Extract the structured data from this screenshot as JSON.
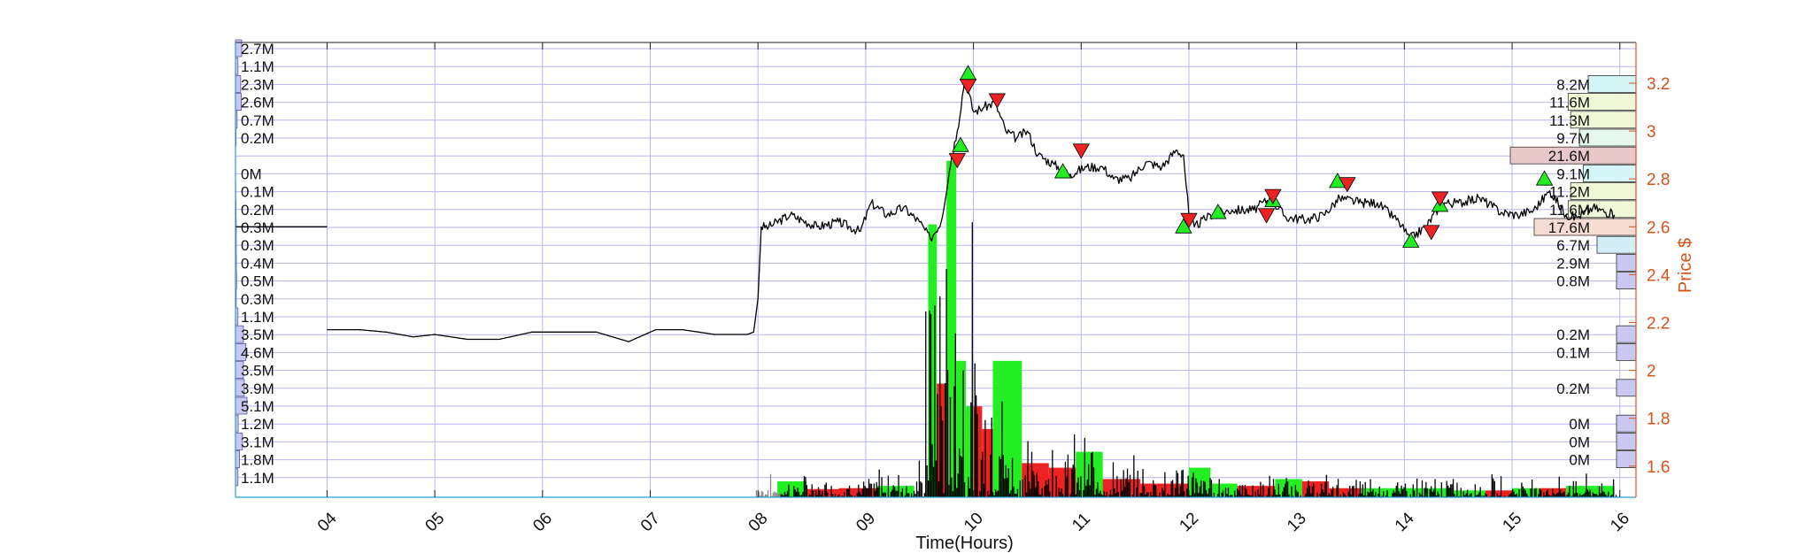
{
  "chart_data": {
    "type": "line",
    "xlabel": "Time(Hours)",
    "ylabel_right": "Price $",
    "xlim": [
      3.15,
      16.15
    ],
    "ylim": [
      1.47,
      3.37
    ],
    "x_ticks": [
      "04",
      "05",
      "06",
      "07",
      "08",
      "09",
      "10",
      "11",
      "12",
      "13",
      "14",
      "15",
      "16"
    ],
    "y_ticks_right": [
      1.6,
      1.8,
      2,
      2.2,
      2.4,
      2.6,
      2.8,
      3,
      3.2
    ],
    "grid": true,
    "colors": {
      "price": "#000000",
      "axis_right": "#d95319",
      "grid": "#b6b6f2",
      "up": "#22ee22",
      "down": "#ee2222",
      "left_profile": "#c8c8f0",
      "right_profile": "#c8c8f0"
    },
    "price_series": {
      "name": "Price",
      "points": [
        [
          4.0,
          2.17
        ],
        [
          4.3,
          2.17
        ],
        [
          4.55,
          2.16
        ],
        [
          4.8,
          2.14
        ],
        [
          5.0,
          2.15
        ],
        [
          5.3,
          2.13
        ],
        [
          5.6,
          2.13
        ],
        [
          5.9,
          2.16
        ],
        [
          6.2,
          2.16
        ],
        [
          6.5,
          2.16
        ],
        [
          6.8,
          2.12
        ],
        [
          7.05,
          2.17
        ],
        [
          7.3,
          2.17
        ],
        [
          7.6,
          2.15
        ],
        [
          7.9,
          2.15
        ],
        [
          7.96,
          2.16
        ],
        [
          8.0,
          2.3
        ],
        [
          8.03,
          2.6
        ],
        [
          8.1,
          2.6
        ],
        [
          8.3,
          2.65
        ],
        [
          8.55,
          2.6
        ],
        [
          8.75,
          2.62
        ],
        [
          8.95,
          2.58
        ],
        [
          9.05,
          2.7
        ],
        [
          9.2,
          2.65
        ],
        [
          9.35,
          2.68
        ],
        [
          9.5,
          2.62
        ],
        [
          9.6,
          2.55
        ],
        [
          9.7,
          2.62
        ],
        [
          9.8,
          2.9
        ],
        [
          9.85,
          3.0
        ],
        [
          9.92,
          3.22
        ],
        [
          10.0,
          3.08
        ],
        [
          10.1,
          3.1
        ],
        [
          10.2,
          3.12
        ],
        [
          10.3,
          3.0
        ],
        [
          10.4,
          2.97
        ],
        [
          10.5,
          3.0
        ],
        [
          10.6,
          2.9
        ],
        [
          10.75,
          2.86
        ],
        [
          10.9,
          2.82
        ],
        [
          11.05,
          2.85
        ],
        [
          11.2,
          2.85
        ],
        [
          11.3,
          2.8
        ],
        [
          11.45,
          2.8
        ],
        [
          11.6,
          2.87
        ],
        [
          11.75,
          2.85
        ],
        [
          11.88,
          2.92
        ],
        [
          11.95,
          2.9
        ],
        [
          12.0,
          2.65
        ],
        [
          12.05,
          2.6
        ],
        [
          12.2,
          2.65
        ],
        [
          12.4,
          2.67
        ],
        [
          12.6,
          2.67
        ],
        [
          12.75,
          2.72
        ],
        [
          12.9,
          2.64
        ],
        [
          13.1,
          2.63
        ],
        [
          13.25,
          2.65
        ],
        [
          13.4,
          2.72
        ],
        [
          13.6,
          2.7
        ],
        [
          13.75,
          2.7
        ],
        [
          13.95,
          2.62
        ],
        [
          14.05,
          2.55
        ],
        [
          14.2,
          2.6
        ],
        [
          14.35,
          2.7
        ],
        [
          14.5,
          2.7
        ],
        [
          14.7,
          2.72
        ],
        [
          14.9,
          2.66
        ],
        [
          15.05,
          2.65
        ],
        [
          15.2,
          2.67
        ],
        [
          15.35,
          2.75
        ],
        [
          15.5,
          2.65
        ],
        [
          15.6,
          2.64
        ],
        [
          15.75,
          2.68
        ],
        [
          15.95,
          2.65
        ]
      ]
    },
    "buy_markers": [
      [
        9.88,
        2.94
      ],
      [
        9.95,
        3.24
      ],
      [
        10.83,
        2.83
      ],
      [
        11.95,
        2.6
      ],
      [
        12.27,
        2.66
      ],
      [
        12.78,
        2.71
      ],
      [
        13.38,
        2.79
      ],
      [
        14.06,
        2.54
      ],
      [
        14.33,
        2.69
      ],
      [
        15.3,
        2.8
      ]
    ],
    "sell_markers": [
      [
        9.85,
        2.88
      ],
      [
        9.95,
        3.19
      ],
      [
        10.22,
        3.13
      ],
      [
        11.0,
        2.92
      ],
      [
        12.0,
        2.63
      ],
      [
        12.72,
        2.65
      ],
      [
        12.78,
        2.73
      ],
      [
        13.47,
        2.78
      ],
      [
        14.25,
        2.58
      ],
      [
        14.33,
        2.72
      ]
    ],
    "volume_bars": [
      {
        "x0": 8.18,
        "x1": 8.45,
        "frac": 0.035,
        "dir": "up"
      },
      {
        "x0": 8.45,
        "x1": 8.75,
        "frac": 0.018,
        "dir": "down"
      },
      {
        "x0": 8.75,
        "x1": 9.1,
        "frac": 0.02,
        "dir": "down"
      },
      {
        "x0": 9.1,
        "x1": 9.45,
        "frac": 0.025,
        "dir": "up"
      },
      {
        "x0": 9.58,
        "x1": 9.66,
        "frac": 0.6,
        "dir": "up"
      },
      {
        "x0": 9.66,
        "x1": 9.75,
        "frac": 0.25,
        "dir": "down"
      },
      {
        "x0": 9.75,
        "x1": 9.84,
        "frac": 0.74,
        "dir": "up"
      },
      {
        "x0": 9.84,
        "x1": 9.93,
        "frac": 0.3,
        "dir": "up"
      },
      {
        "x0": 9.93,
        "x1": 10.0,
        "frac": 0.2,
        "dir": "up"
      },
      {
        "x0": 10.0,
        "x1": 10.08,
        "frac": 0.2,
        "dir": "down"
      },
      {
        "x0": 10.08,
        "x1": 10.18,
        "frac": 0.15,
        "dir": "down"
      },
      {
        "x0": 10.18,
        "x1": 10.45,
        "frac": 0.3,
        "dir": "up"
      },
      {
        "x0": 10.45,
        "x1": 10.7,
        "frac": 0.075,
        "dir": "down"
      },
      {
        "x0": 10.7,
        "x1": 10.95,
        "frac": 0.065,
        "dir": "down"
      },
      {
        "x0": 10.95,
        "x1": 11.2,
        "frac": 0.1,
        "dir": "up"
      },
      {
        "x0": 11.2,
        "x1": 11.55,
        "frac": 0.04,
        "dir": "down"
      },
      {
        "x0": 11.55,
        "x1": 12.0,
        "frac": 0.03,
        "dir": "down"
      },
      {
        "x0": 12.0,
        "x1": 12.2,
        "frac": 0.065,
        "dir": "up"
      },
      {
        "x0": 12.2,
        "x1": 12.45,
        "frac": 0.03,
        "dir": "up"
      },
      {
        "x0": 12.45,
        "x1": 12.8,
        "frac": 0.025,
        "dir": "down"
      },
      {
        "x0": 12.8,
        "x1": 13.05,
        "frac": 0.04,
        "dir": "up"
      },
      {
        "x0": 13.05,
        "x1": 13.3,
        "frac": 0.035,
        "dir": "down"
      },
      {
        "x0": 13.3,
        "x1": 13.6,
        "frac": 0.02,
        "dir": "down"
      },
      {
        "x0": 13.6,
        "x1": 14.0,
        "frac": 0.02,
        "dir": "up"
      },
      {
        "x0": 14.0,
        "x1": 14.45,
        "frac": 0.02,
        "dir": "up"
      },
      {
        "x0": 14.45,
        "x1": 14.75,
        "frac": 0.015,
        "dir": "up"
      },
      {
        "x0": 14.75,
        "x1": 15.0,
        "frac": 0.015,
        "dir": "down"
      },
      {
        "x0": 15.0,
        "x1": 15.25,
        "frac": 0.02,
        "dir": "up"
      },
      {
        "x0": 15.25,
        "x1": 15.5,
        "frac": 0.02,
        "dir": "down"
      },
      {
        "x0": 15.5,
        "x1": 15.95,
        "frac": 0.025,
        "dir": "up"
      }
    ],
    "left_volume_profile": [
      {
        "label": "2.7M",
        "frac": 0.5
      },
      {
        "label": "1.1M",
        "frac": 0.2
      },
      {
        "label": "2.3M",
        "frac": 0.42
      },
      {
        "label": "2.6M",
        "frac": 0.47
      },
      {
        "label": "0.7M",
        "frac": 0.13
      },
      {
        "label": "0.2M",
        "frac": 0.04
      },
      {
        "label": "",
        "frac": 0
      },
      {
        "label": "0M",
        "frac": 0
      },
      {
        "label": "0.1M",
        "frac": 0.02
      },
      {
        "label": "0.2M",
        "frac": 0.04
      },
      {
        "label": "0.3M",
        "frac": 0.06
      },
      {
        "label": "0.3M",
        "frac": 0.06
      },
      {
        "label": "0.4M",
        "frac": 0.07
      },
      {
        "label": "0.5M",
        "frac": 0.09
      },
      {
        "label": "0.3M",
        "frac": 0.06
      },
      {
        "label": "1.1M",
        "frac": 0.2
      },
      {
        "label": "3.5M",
        "frac": 0.64
      },
      {
        "label": "4.6M",
        "frac": 0.84
      },
      {
        "label": "3.5M",
        "frac": 0.64
      },
      {
        "label": "3.9M",
        "frac": 0.71
      },
      {
        "label": "5.1M",
        "frac": 0.93
      },
      {
        "label": "1.2M",
        "frac": 0.22
      },
      {
        "label": "3.1M",
        "frac": 0.56
      },
      {
        "label": "1.8M",
        "frac": 0.33
      },
      {
        "label": "1.1M",
        "frac": 0.2
      }
    ],
    "right_volume_profile": [
      {
        "label": "",
        "frac": 0,
        "color": ""
      },
      {
        "label": "",
        "frac": 0,
        "color": ""
      },
      {
        "label": "8.2M",
        "frac": 0.38,
        "color": "#d4f6f6"
      },
      {
        "label": "11.6M",
        "frac": 0.54,
        "color": "#eef8d6"
      },
      {
        "label": "11.3M",
        "frac": 0.52,
        "color": "#eef8d6"
      },
      {
        "label": "9.7M",
        "frac": 0.45,
        "color": "#e6f8ee"
      },
      {
        "label": "21.6M",
        "frac": 1.0,
        "color": "#e8c8c8"
      },
      {
        "label": "9.1M",
        "frac": 0.42,
        "color": "#d4f6f6"
      },
      {
        "label": "11.2M",
        "frac": 0.52,
        "color": "#eef8d6"
      },
      {
        "label": "11.6M",
        "frac": 0.54,
        "color": "#eef8d6"
      },
      {
        "label": "17.6M",
        "frac": 0.81,
        "color": "#f6dcd2"
      },
      {
        "label": "6.7M",
        "frac": 0.31,
        "color": "#d4eef8"
      },
      {
        "label": "2.9M",
        "frac": 0.13,
        "color": "#c8c8f0"
      },
      {
        "label": "0.8M",
        "frac": 0.04,
        "color": "#c8c8f0"
      },
      {
        "label": "",
        "frac": 0,
        "color": ""
      },
      {
        "label": "",
        "frac": 0,
        "color": ""
      },
      {
        "label": "0.2M",
        "frac": 0.02,
        "color": "#c8c8f0"
      },
      {
        "label": "0.1M",
        "frac": 0.02,
        "color": "#c8c8f0"
      },
      {
        "label": "",
        "frac": 0,
        "color": ""
      },
      {
        "label": "0.2M",
        "frac": 0.02,
        "color": "#c8c8f0"
      },
      {
        "label": "",
        "frac": 0,
        "color": ""
      },
      {
        "label": "0M",
        "frac": 0.02,
        "color": "#c8c8f0"
      },
      {
        "label": "0M",
        "frac": 0.02,
        "color": "#c8c8f0"
      },
      {
        "label": "0M",
        "frac": 0.02,
        "color": "#c8c8f0"
      },
      {
        "label": "",
        "frac": 0,
        "color": ""
      }
    ]
  }
}
